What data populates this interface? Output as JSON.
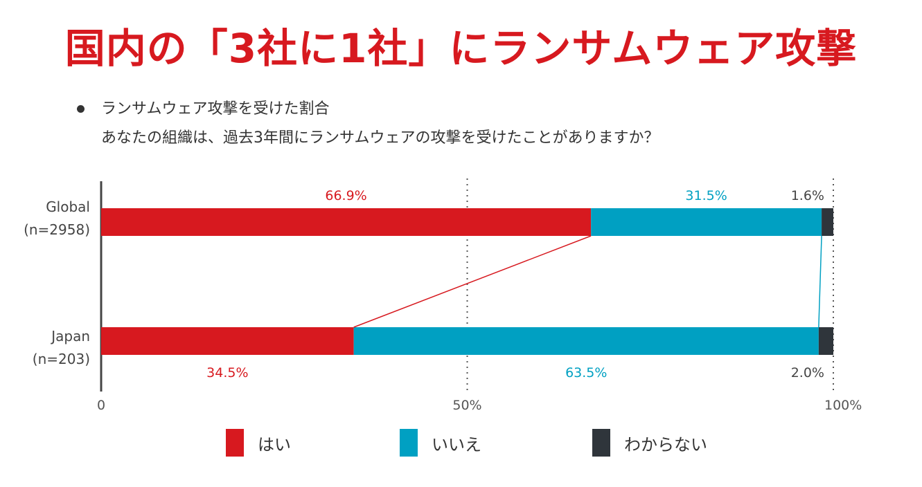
{
  "headline": "国内の「3社に1社」にランサムウェア攻撃",
  "subtitle": {
    "line1": "ランサムウェア攻撃を受けた割合",
    "line2": "あなたの組織は、過去3年間にランサムウェアの攻撃を受けたことがありますか？"
  },
  "colors": {
    "yes": "#d7191f",
    "no": "#00a0c2",
    "unknown": "#2f353b",
    "headline": "#d7191f"
  },
  "chart_data": {
    "type": "bar",
    "orientation": "horizontal",
    "stacked": true,
    "percent_stacked": true,
    "categories": [
      {
        "line1": "Global",
        "line2": "(n=2958)"
      },
      {
        "line1": "Japan",
        "line2": "(n=203)"
      }
    ],
    "series": [
      {
        "name": "はい",
        "values": [
          66.9,
          34.5
        ],
        "labels": [
          "66.9%",
          "34.5%"
        ],
        "color": "#d7191f"
      },
      {
        "name": "いいえ",
        "values": [
          31.5,
          63.5
        ],
        "labels": [
          "31.5%",
          "63.5%"
        ],
        "color": "#00a0c2"
      },
      {
        "name": "わからない",
        "values": [
          1.6,
          2.0
        ],
        "labels": [
          "1.6%",
          "2.0%"
        ],
        "color": "#2f353b"
      }
    ],
    "xlim": [
      0,
      100
    ],
    "x_ticks": [
      {
        "value": 0,
        "label": "0"
      },
      {
        "value": 50,
        "label": "50%"
      },
      {
        "value": 100,
        "label": "100%"
      }
    ],
    "gridlines": "dotted at 50% and 100%",
    "connector_lines": true,
    "legend_position": "bottom"
  }
}
